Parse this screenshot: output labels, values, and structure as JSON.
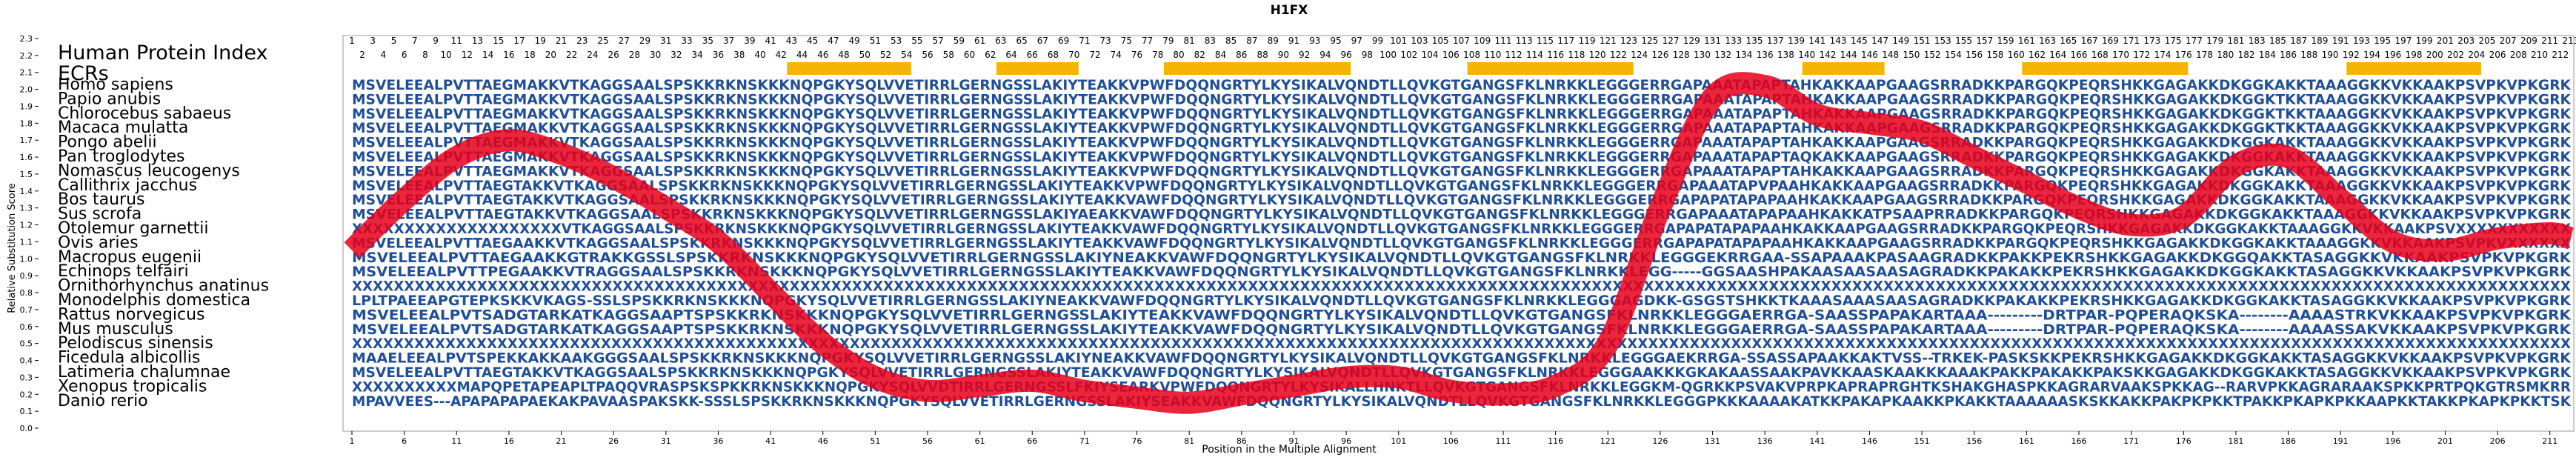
{
  "chart_data": {
    "type": "line",
    "title": "H1FX",
    "xlabel": "Position in the Multiple Alignment",
    "ylabel": "Relative Substitution Score",
    "index_label": "Human Protein Index",
    "ecr_label": "ECRs",
    "xlim": [
      1,
      213
    ],
    "ylim": [
      0.0,
      2.3
    ],
    "yticks": [
      "0.0",
      "0.1",
      "0.2",
      "0.3",
      "0.4",
      "0.5",
      "0.6",
      "0.7",
      "0.8",
      "0.9",
      "1.0",
      "1.1",
      "1.2",
      "1.3",
      "1.4",
      "1.5",
      "1.6",
      "1.7",
      "1.8",
      "1.9",
      "2.0",
      "2.1",
      "2.2",
      "2.3"
    ],
    "xticks": [
      1,
      6,
      11,
      16,
      21,
      26,
      31,
      36,
      41,
      46,
      51,
      56,
      61,
      66,
      71,
      76,
      81,
      86,
      91,
      96,
      101,
      106,
      111,
      116,
      121,
      126,
      131,
      136,
      141,
      146,
      151,
      156,
      161,
      166,
      171,
      176,
      181,
      186,
      191,
      196,
      201,
      206,
      211
    ],
    "human_index_max": 213,
    "grid": false,
    "ecr_regions": [
      [
        43,
        54
      ],
      [
        63,
        70
      ],
      [
        79,
        96
      ],
      [
        108,
        123
      ],
      [
        140,
        147
      ],
      [
        161,
        176
      ],
      [
        192,
        204
      ]
    ],
    "series": [
      {
        "color": "#e8001a",
        "x": [
          1,
          6,
          11,
          16,
          21,
          26,
          31,
          36,
          41,
          46,
          51,
          56,
          61,
          66,
          71,
          76,
          81,
          86,
          91,
          96,
          101,
          106,
          111,
          116,
          121,
          126,
          131,
          136,
          141,
          146,
          151,
          156,
          161,
          166,
          171,
          176,
          181,
          186,
          191,
          196,
          201,
          206,
          211,
          213
        ],
        "y": [
          1.05,
          1.35,
          1.6,
          1.7,
          1.62,
          1.48,
          1.3,
          1.1,
          0.8,
          0.5,
          0.3,
          0.22,
          0.25,
          0.28,
          0.22,
          0.18,
          0.15,
          0.2,
          0.25,
          0.3,
          0.3,
          0.22,
          0.2,
          0.25,
          0.5,
          1.3,
          1.95,
          2.02,
          1.85,
          1.8,
          1.75,
          1.6,
          1.45,
          1.3,
          1.2,
          1.25,
          1.55,
          1.6,
          1.35,
          1.1,
          1.05,
          1.12,
          1.15,
          1.12
        ]
      }
    ],
    "species": [
      "Homo sapiens",
      "Papio anubis",
      "Chlorocebus sabaeus",
      "Macaca mulatta",
      "Pongo abelii",
      "Pan troglodytes",
      "Nomascus leucogenys",
      "Callithrix jacchus",
      "Bos taurus",
      "Sus scrofa",
      "Otolemur garnettii",
      "Ovis aries",
      "Macropus eugenii",
      "Echinops telfairi",
      "Ornithorhynchus anatinus",
      "Monodelphis domestica",
      "Rattus norvegicus",
      "Mus musculus",
      "Pelodiscus sinensis",
      "Ficedula albicollis",
      "Latimeria chalumnae",
      "Xenopus tropicalis",
      "Danio rerio"
    ],
    "sequences": [
      "MSVELEEALPVTTAEGMAKKVTKAGGSAALSPSKKRKNSKKKNQPGKYSQLVVETIRRLGERNGSSLAKIYTEAKKVPWFDQQNGRTYLKYSIKALVQNDTLLQVKGTGANGSFKLNRKKLEGGGERRGAPAAATAPAPTAHKAKKAAPGAAGSRRADKKPARGQKPEQRSHKKGAGAKKDKGGKAKKTAAAGGKKVKKAAKPSVPKVPKGRK",
      "MSVELEEALPVTTAEGMAKKVTKAGGSAALSPSKKRKNSKKKNQPGKYSQLVVETIRRLGERNGSSLAKIYTEAKKVPWFDQQNGRTYLKYSIKALVQNDTLLQVKGTGANGSFKLNRKKLEGGGERRGAPAAATAPAPTAHKAKKAAPGAAGSRRADKKPARGQKPEQRSHKKGAGAKKDKGGKTKKTAAAGGKKVKKAAKPSVPKVPKGRK",
      "MSVELEEALPVTTAEGMAKKVTKAGGSAALSPSKKRKNSKKKNQPGKYSQLVVETIRRLGERNGSSLAKIYTEAKKVPWFDQQNGRTYLKYSIKALVQNDTLLQVKGTGANGSFKLNRKKLEGGGERRGAPAAATAPAPTAHKAKKAAPGAAGSRRADKKPARGQKPEQRSHKKGAGAKKDKGGKTKKTAAAGGKKVKKAAKPSVPKVPKGRK",
      "MSVELEEALPVTTAEGMAKKVTKAGGSAALSPSKKRKNSKKKNQPGKYSQLVVETIRRLGERNGSSLAKIYTEAKKVPWFDQQNGRTYLKYSIKALVQNDTLLQVKGTGANGSFKLNRKKLEGGGERRGAPAAATAPAPTAHKAKKAAPGAAGSRRADKKPARGQKPEQRSHKKGAGAKKDKGGKTKKTAAAGGKKVKKAAKPSVPKVPKGRK",
      "MSVELEEALPVTTAEGMAKKVTKAGGSAALSPSKKRKNSKKKNQPGKYSQLVVETIRRLGERNGSSLAKIYTEAKKVPWFDQQNGRTYLKYSIKALVQNDTLLQVKGTGANGSFKLNRKKLEGGGERRGAPAAATAPAPTAHKAKKAAPGAAGSRRADKKPARGQKPEQRSHKKGAGAKKDKGGKAKKTAAAGGKKVKKAAKPSVPKVPKGRK",
      "MSVELEEALPVTTAEGMAKKVTKAGGSAALSPSKKRKNSKKKNQPGKYSQLVVETIRRLGERNGSSLAKIYTEAKKVPWFDQQNGRTYLKYSIKALVQNDTLLQVKGTGANGSFKLNRKKLEGGGERRGAPAAATAPAPTAQKAKKAAPGAAGSRRADKKPARGQKPEQRSHKKGAGAKKDKGGKAKKTAAAGGKKVKKAAKPSVPKVPKGRK",
      "MSVELEEALPVTTAEGMAKKVTKAGGSAALSPSKKRKNSKKKNQPGKYSQLVVETIRRLGERNGSSLAKIYTEAKKVPWFDQQNGRTYLKYSIKALVQNDTLLQVKGTGANGSFKLNRKKLEGGGERRGAPAAATAPAPTAHKAKKAAPGAAGSRRADKKPARGQKPEQRSHKKGAGAKKDKGGKAKKTAAAGGKKVKKAAKPSVPKVPKGRK",
      "MSVELEEALPVTTAEGTAKKVTKAGGSAALSPSKKRKNSKKKNQPGKYSQLVVETIRRLGERNGSSLAKIYTEAKKVPWFDQQNGRTYLKYSIKALVQNDTLLQVKGTGANGSFKLNRKKLEGGGERRGAPAAATAPVPAAHKAKKAAPGAAGSRRADKKPARGQKPEQRSHKKGAGAKKDKGGKAKKTAAAGGKKVKKAAKPSVPKVPKGRK",
      "MSVELEEALPVTTAEGTAKKVTKAGGSAALSPSKKRKNSKKKNQPGKYSQLVVETIRRLGERNGSSLAKIYTEAKKVAWFDQQNGRTYLKYSIKALVQNDTLLQVKGTGANGSFKLNRKKLEGGGERRGAPAPATAPAPAAHKAKKAAPGAAGSRRADKKPARGQKPEQRSHKKGAGAKKDKGGKAKKTAAAGGKKVKKAAKPSVPKVPKGRK",
      "MSVELEEALPVTTAEGTAKKVTKAGGSAALSPSKKRKNSKKKNQPGKYSQLVVETIRRLGERNGSSLAKIYAEAKKVAWFDQQNGRTYLKYSIKALVQNDTLLQVKGTGANGSFKLNRKKLEGGGERRGAPAAATAPAPAAHKAKKATPSAAPRRADKKPARGQKPEQRSHKKGAGAKKDKGGKAKKTAAAGGKKVKKAAKPSVPKVPKGRK",
      "XXXXXXXXXXXXXXXXXXXXVTKAGGSAALSPSKKRKNSKKKNQPGKYSQLVVETIRRLGERNGSSLAKIYTEAKKVAWFDQQNGRTYLKYSIKALVQNDTLLQVKGTGANGSFKLNRKKLEGGGERRGAPAPATAPAPAAHKAKKAAPGAAGSRRADKKPARGQKPEQRSHKKGAGAKKDKGGKAKKTAAAGGKKVKKAAKPSVXXXXXXXXXXX",
      "MSVELEEALPVTTAEGAAKKVTKAGGSAALSPSKKRKNSKKKNQPGKYSQLVVETIRRLGERNGSSLAKIYTEAKKVAWFDQQNGRTYLKYSIKALVQNDTLLQVKGTGANGSFKLNRKKLEGGGERRGAPAPATAPAPAAHKAKKAAPGAAGSRRADKKPARGQKPEQRSHKKGAGAKKDKGGKAKKTAAAGGKKVKKAAKPSVPKVXXXXXX",
      "MSVELEEALPVTTAEGAAKKGTRAKKGSSLSPSKKRKNSKKKNQPGKYSQLVVETIRRLGERNGSSLAKIYNEAKKVAWFDQQNGRTYLKYSIKALVQNDTLLQVKGTGANGSFKLNRKKLEGGGEKRRGAA-SSAPAAAKPASAAGRADKKPAKKPEKRSHKKGAGAKKDKGGQAKKTASAGGKKVKKAAKPSVPKVPKGRK",
      "MSVELEEALPVTTPEGAAKKVTRAGGSAALSPSKKRKNSKKKNQPGKYSQLVVETIRRLGERNGSSLAKIYTEAKKVAWFDQQNGRTYLKYSIKALVQNDTLLQVKGTGANGSFKLNRKKLEGG-----GGSAASHPAKAASAASAASAGRADKKPAKAKKPEKRSHKKGAGAKKDKGGKAKKTASAGGKKVKKAAKPSVPKVPKGRK",
      "XXXXXXXXXXXXXXXXXXXXXXXXXXXXXXXXXXXXXXXXXXXXXXXXXXXXXXXXXXXXXXXXXXXXXXXXXXXXXXXXXXXXXXXXXXXXXXXXXXXXXXXXXXXXXXXXXXXXXXXXXXXXXXXXXXXXXXXXXXXXXXXXXXXXXXXXXXXXXXXXXXXXXXXXXXXXXXXXXXXXXXXXXXXXXXXXXXXXXXXXXXXXXXXXXXXXX",
      "LPLTPAEEAPGTEPKSKKVKAGS-SSLSPSKKRKNSKKKNQPGKYSQLVVETIRRLGERNGSSLAKIYNEAKKVAWFDQQNGRTYLKYSIKALVQNDTLLQVKGTGANGSFKLNRKKLEGGGAGDKK-GSGSTSHKKTKAAASAAASAASAGRADKKPAKAKKPEKRSHKKGAGAKKDKGGKAKKTASAGGKKVKKAAKPSVPKVPKGRK",
      "MSVELEEALPVTSADGTARKATKAGGSAAPTSPSKKRKNSKKKNQPGKYSQLVVETIRRLGERNGSSLAKIYTEAKKVAWFDQQNGRTYLKYSIKALVQNDTLLQVKGTGANGSFKLNRKKLEGGGAERRGA-SAASSPAPAKARTAAA---------DRTPAR-PQPERAQKSKA--------AAAASTRKVKKAAKPSVPKVPKGRK",
      "MSVELEEALPVTSADGTARKATKAGGSAAPTSPSKKRKNSKKKNQPGKYSQLVVETIRRLGERNGSSLAKIYTEAKKVAWFDQQNGRTYLKYSIKALVQNDTLLQVKGTGANGSFKLNRKKLEGGGAERRGA-SAASSPAPAKARTAAA---------DRTPAR-PQPERAQKSKA--------AAAASSAKVKKAAKPSVPKVPKGRK",
      "XXXXXXXXXXXXXXXXXXXXXXXXXXXXXXXXXXXXXXXXXXXXXXXXXXXXXXXXXXXXXXXXXXXXXXXXXXXXXXXXXXXXXXXXXXXXXXXXXXXXXXXXXXXXXXXXXXXXXXXXXXXXXXXXXXXXXXXXXXXXXXXXXXXXXXXXXXXXXXXXXXXXXXXXXXXXXXXXXXXXXXXXXXXXXXXXXXXXXXXXXXXXXXXXXXXXXX",
      "MAAELEEALPVTSPEKKAKKAAKGGGSAALSPSKKRKNSKKKNQPGKYSQLVVETIRRLGERNGSSLAKIYNEAKKVAWFDQQNGRTYLKYSIKALVQNDTLLQVKGTGANGSFKLNRKKLEGGGAEKRRGA-SSASSAPAAKKAKTVSS--TRKEK-PASKSKKPEKRSHKKGAGAKKDKGGKAKKTASAGGKKVKKAAKPSVPKVPKGRK",
      "MSVELEEALPVTTAEGTAKKVTKAGGSAALSPSKKRKNSKKKNQPGKYSQLVVETIRRLGERNGSSLAKIYTEAKKVAWFDQQNGRTYLKYSIKALVQNDTLLQVKGTGANGSFKLNRKKLEGGGAAKKKGKAKAASSAAKPAVKKAASKAAKKKAAAKPAKKPAKAKKPAKSKKGAGAKKDKGGKAKKTASAGGKKVKKAAKPSVPKVPKGRK",
      "XXXXXXXXXXMAPQPETAPEAPLTPAQQVRASPSKSPKKRKNSKKKNQPGKYSQLVVDTIRRLGERNGSSLFKIYSEARKVPWFDQQNGRTYLKYSIKALLHNKTLLQVKGTGANGSFKLNRKKLEGGKM-QGRKKPSVAKVPRPKAPRAPRGHTKSHAKGHASPKKAGRARVAAKSPKKAG--RARVPKKAGRARAAKSPKKPRTPQKGTRSMKRR",
      "MPAVVEES---APAPAPAPAEKAKPAVAASPAKSKK-SSSLSPSKKRKNSKKKNQPGKYSQLVVETIRRLGERNGSSLAKIYSEAKKVAWFDQQNGRTYLKYSIKALVQNDTLLQVKGTGANGSFKLNRKKLEGGGPKKKAAAAKATKKPAKAPKAAKKPKAKKTAAAAAASKSKKAKKPAKPKPKKTPAKKPKAPKPKKAAPKKTAKKPKAPKPKKTSK"
    ]
  }
}
